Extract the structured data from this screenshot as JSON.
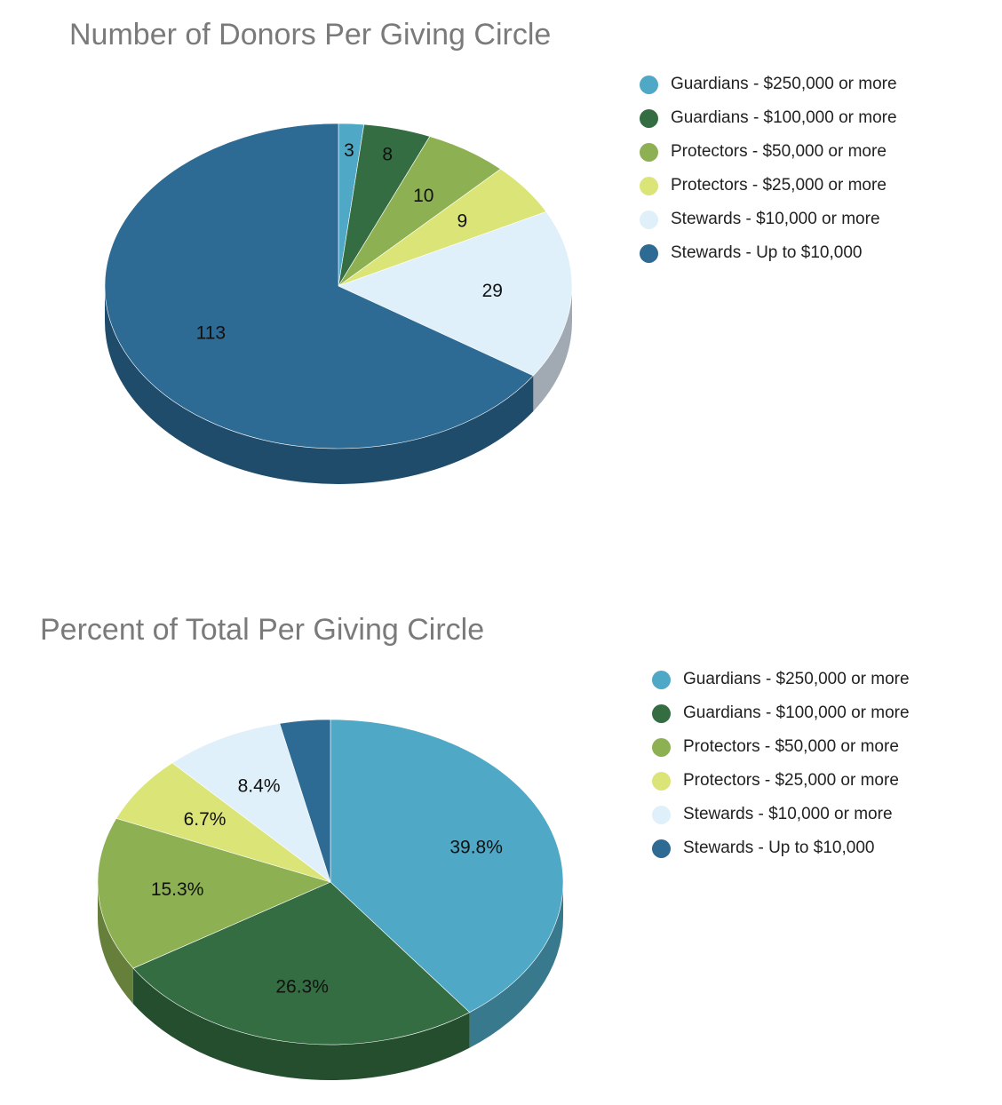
{
  "chart_data": [
    {
      "type": "pie",
      "title": "Number of Donors Per Giving Circle",
      "legend_position": "top-right",
      "categories": [
        "Guardians - $250,000 or more",
        "Guardians - $100,000 or more",
        "Protectors - $50,000 or more",
        "Protectors - $25,000 or more",
        "Stewards - $10,000 or more",
        "Stewards - Up to $10,000"
      ],
      "values": [
        3,
        8,
        10,
        9,
        29,
        113
      ],
      "labels": [
        "3",
        "8",
        "10",
        "9",
        "29",
        "113"
      ],
      "colors": [
        "#4fa8c5",
        "#336d41",
        "#8db052",
        "#dbe577",
        "#e0f0fa",
        "#2d6a94"
      ]
    },
    {
      "type": "pie",
      "title": "Percent of Total Per Giving Circle",
      "legend_position": "top-right",
      "categories": [
        "Guardians - $250,000 or more",
        "Guardians - $100,000 or more",
        "Protectors - $50,000 or more",
        "Protectors - $25,000 or more",
        "Stewards - $10,000 or more",
        "Stewards - Up to $10,000"
      ],
      "values": [
        39.8,
        26.3,
        15.3,
        6.7,
        8.4,
        3.5
      ],
      "labels": [
        "39.8%",
        "26.3%",
        "15.3%",
        "6.7%",
        "8.4%",
        ""
      ],
      "colors": [
        "#4fa8c5",
        "#336d41",
        "#8db052",
        "#dbe577",
        "#e0f0fa",
        "#2d6a94"
      ]
    }
  ]
}
